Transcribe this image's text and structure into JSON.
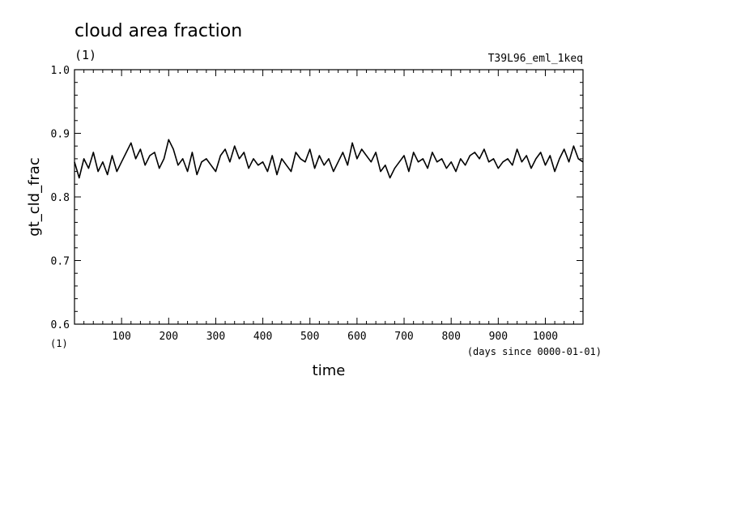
{
  "chart_data": {
    "type": "line",
    "title": "cloud area fraction",
    "units": "(1)",
    "run_label": "T39L96_eml_1keq",
    "ylabel": "gt_cld_frac",
    "y_units": "(1)",
    "xlabel": "time",
    "x_units": "(days since 0000-01-01)",
    "xlim": [
      0,
      1080
    ],
    "ylim": [
      0.6,
      1.0
    ],
    "x_ticks": [
      100,
      200,
      300,
      400,
      500,
      600,
      700,
      800,
      900,
      1000
    ],
    "y_ticks": [
      "0.6",
      "0.7",
      "0.8",
      "0.9",
      "1.0"
    ],
    "grid": false,
    "series": [
      {
        "color": "#000000",
        "x": [
          0,
          10,
          20,
          30,
          40,
          50,
          60,
          70,
          80,
          90,
          100,
          110,
          120,
          130,
          140,
          150,
          160,
          170,
          180,
          190,
          200,
          210,
          220,
          230,
          240,
          250,
          260,
          270,
          280,
          290,
          300,
          310,
          320,
          330,
          340,
          350,
          360,
          370,
          380,
          390,
          400,
          410,
          420,
          430,
          440,
          450,
          460,
          470,
          480,
          490,
          500,
          510,
          520,
          530,
          540,
          550,
          560,
          570,
          580,
          590,
          600,
          610,
          620,
          630,
          640,
          650,
          660,
          670,
          680,
          690,
          700,
          710,
          720,
          730,
          740,
          750,
          760,
          770,
          780,
          790,
          800,
          810,
          820,
          830,
          840,
          850,
          860,
          870,
          880,
          890,
          900,
          910,
          920,
          930,
          940,
          950,
          960,
          970,
          980,
          990,
          1000,
          1010,
          1020,
          1030,
          1040,
          1050,
          1060,
          1070,
          1080
        ],
        "values": [
          0.855,
          0.83,
          0.86,
          0.845,
          0.87,
          0.84,
          0.855,
          0.835,
          0.865,
          0.84,
          0.855,
          0.87,
          0.885,
          0.86,
          0.875,
          0.85,
          0.865,
          0.87,
          0.845,
          0.86,
          0.89,
          0.875,
          0.85,
          0.86,
          0.84,
          0.87,
          0.835,
          0.855,
          0.86,
          0.85,
          0.84,
          0.865,
          0.875,
          0.855,
          0.88,
          0.86,
          0.87,
          0.845,
          0.86,
          0.85,
          0.855,
          0.84,
          0.865,
          0.835,
          0.86,
          0.85,
          0.84,
          0.87,
          0.86,
          0.855,
          0.875,
          0.845,
          0.865,
          0.85,
          0.86,
          0.84,
          0.855,
          0.87,
          0.85,
          0.885,
          0.86,
          0.875,
          0.865,
          0.855,
          0.87,
          0.84,
          0.85,
          0.83,
          0.845,
          0.855,
          0.865,
          0.84,
          0.87,
          0.855,
          0.86,
          0.845,
          0.87,
          0.855,
          0.86,
          0.845,
          0.855,
          0.84,
          0.86,
          0.85,
          0.865,
          0.87,
          0.86,
          0.875,
          0.855,
          0.86,
          0.845,
          0.855,
          0.86,
          0.85,
          0.875,
          0.855,
          0.865,
          0.845,
          0.86,
          0.87,
          0.85,
          0.865,
          0.84,
          0.86,
          0.875,
          0.855,
          0.88,
          0.86,
          0.855
        ]
      }
    ]
  }
}
